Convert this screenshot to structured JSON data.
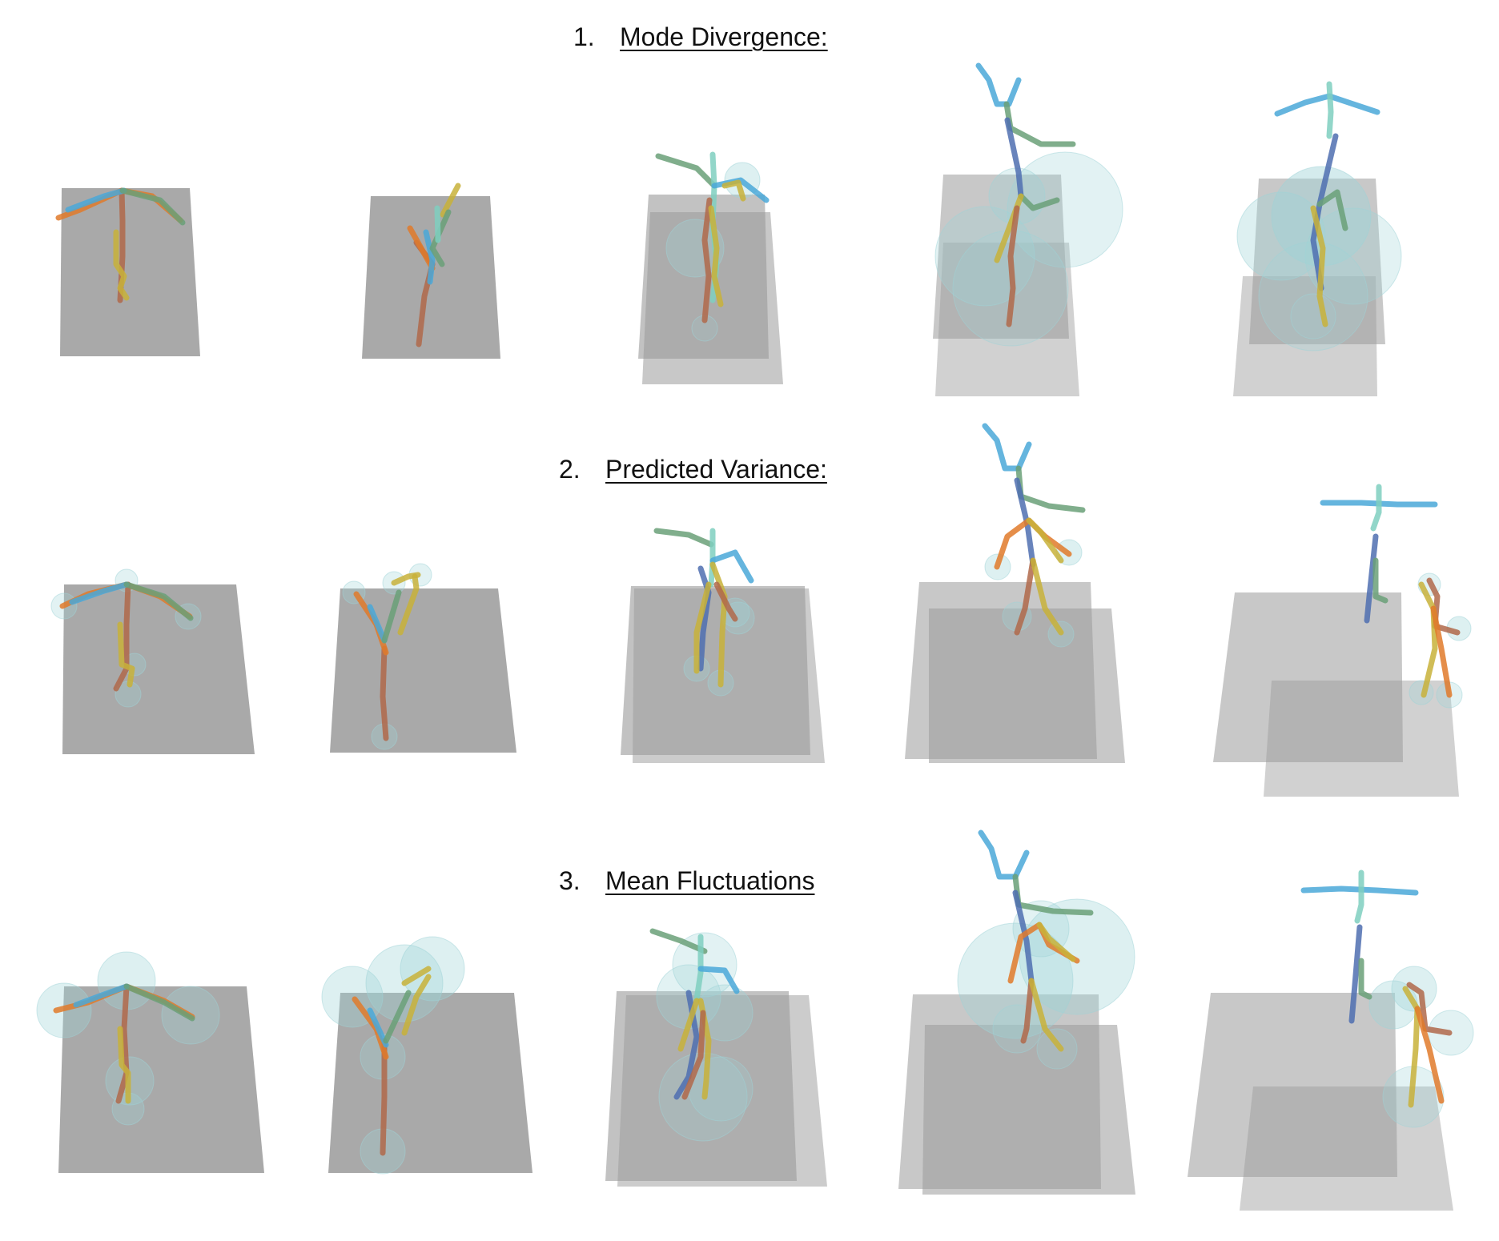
{
  "rows": [
    {
      "number": "1.",
      "title": "Mode Divergence:"
    },
    {
      "number": "2.",
      "title": "Predicted Variance:"
    },
    {
      "number": "3.",
      "title": "Mean Fluctuations"
    }
  ],
  "colors": {
    "plane": "#9a9a9a",
    "variance_bubble": "#9fd3d8",
    "limbs": [
      "#e07a2a",
      "#c8b23a",
      "#b0684a",
      "#4aa8d8",
      "#6aa078",
      "#4f6fb0",
      "#7fcfbf"
    ]
  }
}
